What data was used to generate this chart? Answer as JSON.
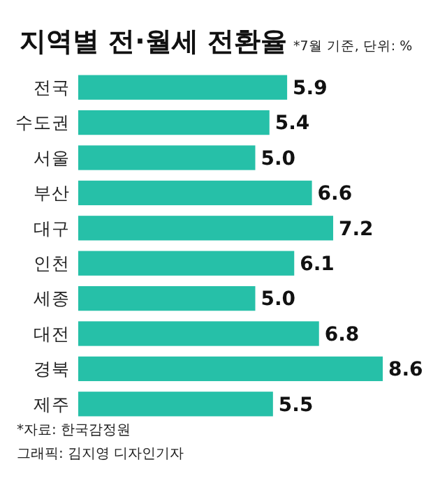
{
  "chart_data": {
    "type": "bar",
    "orientation": "horizontal",
    "title": "지역별 전·월세 전환율",
    "subtitle": "*7월 기준, 단위: %",
    "categories": [
      "전국",
      "수도권",
      "서울",
      "부산",
      "대구",
      "인천",
      "세종",
      "대전",
      "경북",
      "제주"
    ],
    "values": [
      5.9,
      5.4,
      5.0,
      6.6,
      7.2,
      6.1,
      5.0,
      6.8,
      8.6,
      5.5
    ],
    "value_labels": [
      "5.9",
      "5.4",
      "5.0",
      "6.6",
      "7.2",
      "6.1",
      "5.0",
      "6.8",
      "8.6",
      "5.5"
    ],
    "color": "#26c0a8",
    "annotations": [
      "*자료: 한국감정원",
      "그래픽: 김지영 디자인기자"
    ]
  }
}
